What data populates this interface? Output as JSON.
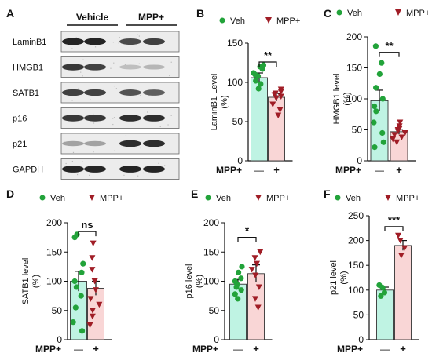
{
  "figure": {
    "colors": {
      "veh_fill": "#bff3e3",
      "mpp_fill": "#f9d6d6",
      "veh_marker": "#22a33a",
      "mpp_marker": "#a01d26"
    },
    "treatment_label": "MPP+",
    "x_ticks": [
      "—",
      "+"
    ]
  },
  "western": {
    "panel_letter": "A",
    "groups": [
      "Vehicle",
      "MPP+"
    ],
    "proteins": [
      "LaminB1",
      "HMGB1",
      "SATB1",
      "p16",
      "p21",
      "GAPDH"
    ],
    "band_intensity": [
      [
        1.0,
        1.0,
        0.8,
        0.85
      ],
      [
        0.9,
        0.85,
        0.2,
        0.25
      ],
      [
        0.85,
        0.85,
        0.75,
        0.7
      ],
      [
        0.9,
        0.9,
        0.95,
        0.95
      ],
      [
        0.35,
        0.35,
        0.95,
        0.95
      ],
      [
        1.0,
        1.0,
        1.0,
        1.0
      ]
    ]
  },
  "chart_data": [
    {
      "panel": "B",
      "type": "bar",
      "ylabel": "LaminB1 Level (%)",
      "ylim": [
        0,
        150
      ],
      "yticks": [
        0,
        50,
        100,
        150
      ],
      "legend": [
        "Veh",
        "MPP+"
      ],
      "significance": "**",
      "categories": [
        "—",
        "+"
      ],
      "series": [
        {
          "name": "Veh",
          "mean": 106,
          "sem": 6,
          "points": [
            92,
            98,
            102,
            108,
            110,
            112,
            117,
            120,
            122
          ]
        },
        {
          "name": "MPP+",
          "mean": 81,
          "sem": 5,
          "points": [
            58,
            65,
            72,
            80,
            82,
            84,
            86,
            88,
            91
          ]
        }
      ],
      "significance_y": 126
    },
    {
      "panel": "C",
      "type": "bar",
      "ylabel": "HMGB1 level (%)",
      "ylim": [
        0,
        200
      ],
      "yticks": [
        0,
        50,
        100,
        150,
        200
      ],
      "legend": [
        "Veh",
        "MPP+"
      ],
      "significance": "**",
      "categories": [
        "—",
        "+"
      ],
      "series": [
        {
          "name": "Veh",
          "mean": 97,
          "sem": 17,
          "points": [
            22,
            30,
            45,
            62,
            80,
            88,
            100,
            118,
            140,
            158,
            185
          ]
        },
        {
          "name": "MPP+",
          "mean": 47,
          "sem": 4,
          "points": [
            30,
            35,
            38,
            42,
            45,
            48,
            50,
            52,
            56,
            62
          ]
        }
      ],
      "significance_y": 175
    },
    {
      "panel": "D",
      "type": "bar",
      "ylabel": "SATB1 level (%)",
      "ylim": [
        0,
        200
      ],
      "yticks": [
        0,
        50,
        100,
        150,
        200
      ],
      "legend": [
        "Veh",
        "MPP+"
      ],
      "significance": "ns",
      "categories": [
        "—",
        "+"
      ],
      "series": [
        {
          "name": "Veh",
          "mean": 100,
          "sem": 17,
          "points": [
            15,
            30,
            55,
            75,
            90,
            100,
            115,
            130,
            175,
            180
          ]
        },
        {
          "name": "MPP+",
          "mean": 88,
          "sem": 12,
          "points": [
            25,
            40,
            50,
            60,
            70,
            85,
            100,
            120,
            140,
            165
          ]
        }
      ],
      "significance_y": 185
    },
    {
      "panel": "E",
      "type": "bar",
      "ylabel": "p16 level (%)",
      "ylim": [
        0,
        200
      ],
      "yticks": [
        0,
        50,
        100,
        150,
        200
      ],
      "legend": [
        "Veh",
        "MPP+"
      ],
      "significance": "*",
      "categories": [
        "—",
        "+"
      ],
      "series": [
        {
          "name": "Veh",
          "mean": 95,
          "sem": 8,
          "points": [
            70,
            78,
            85,
            90,
            95,
            100,
            105,
            115,
            125
          ]
        },
        {
          "name": "MPP+",
          "mean": 113,
          "sem": 15,
          "points": [
            55,
            70,
            90,
            110,
            120,
            130,
            140,
            150
          ]
        }
      ],
      "significance_y": 175
    },
    {
      "panel": "F",
      "type": "bar",
      "ylabel": "p21 level (%)",
      "ylim": [
        0,
        250
      ],
      "yticks": [
        0,
        50,
        100,
        150,
        200,
        250
      ],
      "legend": [
        "Veh",
        "MPP+"
      ],
      "significance": "***",
      "categories": [
        "—",
        "+"
      ],
      "series": [
        {
          "name": "Veh",
          "mean": 100,
          "sem": 6,
          "points": [
            88,
            95,
            105,
            110
          ]
        },
        {
          "name": "MPP+",
          "mean": 190,
          "sem": 10,
          "points": [
            170,
            185,
            200,
            210
          ]
        }
      ],
      "significance_y": 228
    }
  ]
}
